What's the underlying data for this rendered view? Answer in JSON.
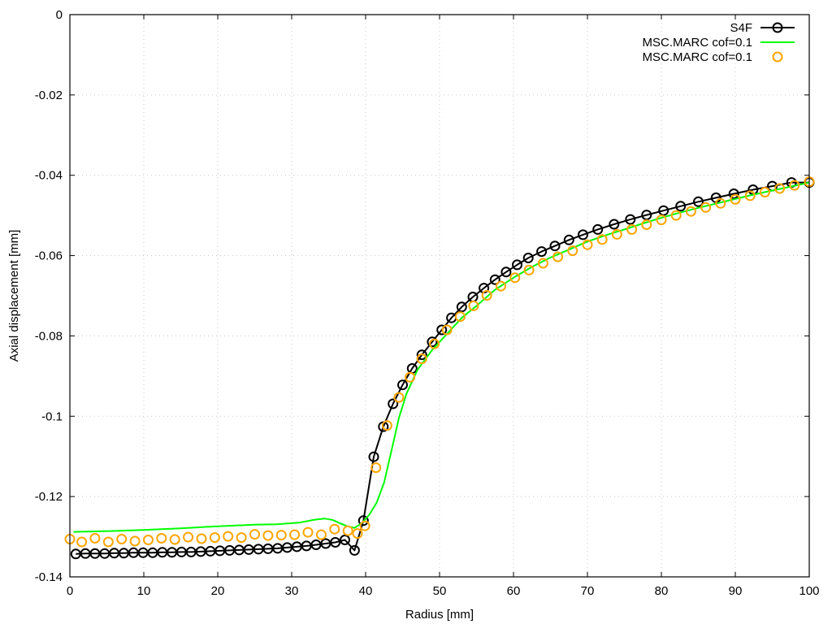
{
  "chart_data": {
    "type": "line",
    "title": "",
    "xlabel": "Radius [mm]",
    "ylabel": "Axial displacement [mm]",
    "xlim": [
      0,
      100
    ],
    "ylim": [
      -0.14,
      0
    ],
    "x_ticks": [
      0,
      10,
      20,
      30,
      40,
      50,
      60,
      70,
      80,
      90,
      100
    ],
    "y_ticks": [
      0,
      -0.02,
      -0.04,
      -0.06,
      -0.08,
      -0.1,
      -0.12,
      -0.14
    ],
    "x_tick_labels": [
      "0",
      "10",
      "20",
      "30",
      "40",
      "50",
      "60",
      "70",
      "80",
      "90",
      "100"
    ],
    "y_tick_labels": [
      "0",
      "-0.02",
      "-0.04",
      "-0.06",
      "-0.08",
      "-0.1",
      "-0.12",
      "-0.14"
    ],
    "grid": true,
    "legend_position": "top-right",
    "series": [
      {
        "name": "S4F",
        "style": "line+circles",
        "color": "#000000",
        "x": [
          0.8,
          2.1,
          3.4,
          4.7,
          6.0,
          7.3,
          8.6,
          9.9,
          11.2,
          12.5,
          13.8,
          15.1,
          16.4,
          17.7,
          19.0,
          20.3,
          21.6,
          22.9,
          24.2,
          25.5,
          26.8,
          28.1,
          29.4,
          30.7,
          32.0,
          33.3,
          34.6,
          35.9,
          37.2,
          38.5,
          39.7,
          41.1,
          42.4,
          43.7,
          45.0,
          46.3,
          47.6,
          49.0,
          50.3,
          51.6,
          53.0,
          54.5,
          56.0,
          57.5,
          59.0,
          60.5,
          62.0,
          63.8,
          65.6,
          67.5,
          69.4,
          71.4,
          73.6,
          75.8,
          78.0,
          80.3,
          82.6,
          85.0,
          87.4,
          89.8,
          92.4,
          95.0,
          97.6,
          100.0
        ],
        "y": [
          -0.1343,
          -0.1342,
          -0.1342,
          -0.1342,
          -0.1341,
          -0.1341,
          -0.134,
          -0.134,
          -0.134,
          -0.1339,
          -0.1339,
          -0.1338,
          -0.1338,
          -0.1337,
          -0.1336,
          -0.1335,
          -0.1334,
          -0.1333,
          -0.1332,
          -0.1331,
          -0.133,
          -0.1329,
          -0.1327,
          -0.1325,
          -0.1323,
          -0.132,
          -0.1317,
          -0.1314,
          -0.1308,
          -0.1334,
          -0.126,
          -0.1101,
          -0.1026,
          -0.0969,
          -0.0922,
          -0.0881,
          -0.0847,
          -0.0815,
          -0.0785,
          -0.0755,
          -0.0728,
          -0.0703,
          -0.0681,
          -0.066,
          -0.0641,
          -0.0623,
          -0.0606,
          -0.059,
          -0.0576,
          -0.0561,
          -0.0548,
          -0.0535,
          -0.0522,
          -0.051,
          -0.0499,
          -0.0488,
          -0.0477,
          -0.0466,
          -0.0456,
          -0.0446,
          -0.0436,
          -0.0427,
          -0.0418,
          -0.0418
        ]
      },
      {
        "name": "MSC.MARC cof=0.1",
        "style": "line",
        "color": "#00ff00",
        "x": [
          0.5,
          5,
          10,
          15,
          20,
          25,
          28,
          31,
          33,
          34.5,
          35.5,
          36.5,
          37.5,
          38.5,
          39.5,
          40.5,
          41.5,
          42.5,
          43.5,
          44.5,
          45.5,
          47,
          49,
          51,
          53,
          55,
          57.5,
          60,
          62.5,
          65,
          67.5,
          70,
          72.5,
          75,
          77.5,
          80,
          82.5,
          85,
          87.5,
          90,
          92.5,
          95,
          97.5,
          100
        ],
        "y": [
          -0.1288,
          -0.1286,
          -0.1283,
          -0.1279,
          -0.1274,
          -0.127,
          -0.1269,
          -0.1265,
          -0.1258,
          -0.1255,
          -0.1258,
          -0.1266,
          -0.1274,
          -0.1278,
          -0.1266,
          -0.1245,
          -0.1215,
          -0.1165,
          -0.1085,
          -0.1005,
          -0.0945,
          -0.0885,
          -0.0835,
          -0.0795,
          -0.0755,
          -0.0725,
          -0.0685,
          -0.0655,
          -0.0628,
          -0.0605,
          -0.0585,
          -0.0565,
          -0.0549,
          -0.0535,
          -0.052,
          -0.0506,
          -0.0493,
          -0.0481,
          -0.047,
          -0.0459,
          -0.0448,
          -0.0438,
          -0.0428,
          -0.0418
        ]
      },
      {
        "name": "MSC.MARC cof=0.1",
        "style": "circles",
        "color": "#ffa500",
        "x": [
          0.0,
          1.6,
          3.4,
          5.2,
          7.0,
          8.8,
          10.6,
          12.4,
          14.2,
          16.0,
          17.8,
          19.6,
          21.4,
          23.2,
          25.0,
          26.8,
          28.6,
          30.4,
          32.2,
          34.0,
          35.8,
          37.6,
          38.9,
          39.9,
          41.4,
          42.9,
          44.5,
          46.0,
          47.6,
          49.3,
          51.0,
          52.8,
          54.6,
          56.4,
          58.3,
          60.2,
          62.1,
          64.0,
          66.0,
          68.0,
          70.0,
          72.0,
          74.0,
          76.0,
          78.0,
          80.0,
          82.0,
          84.0,
          86.0,
          88.0,
          90.0,
          92.0,
          94.0,
          96.0,
          98.0,
          100.0
        ],
        "y": [
          -0.1306,
          -0.1313,
          -0.1304,
          -0.1313,
          -0.1306,
          -0.1311,
          -0.1308,
          -0.1304,
          -0.1307,
          -0.1301,
          -0.1305,
          -0.1302,
          -0.1299,
          -0.1302,
          -0.1294,
          -0.1297,
          -0.1296,
          -0.1295,
          -0.1289,
          -0.1295,
          -0.1281,
          -0.1285,
          -0.1292,
          -0.1273,
          -0.1128,
          -0.1023,
          -0.0953,
          -0.0903,
          -0.0857,
          -0.082,
          -0.0785,
          -0.0752,
          -0.0725,
          -0.0699,
          -0.0676,
          -0.0655,
          -0.0636,
          -0.0619,
          -0.0603,
          -0.0588,
          -0.0573,
          -0.056,
          -0.0547,
          -0.0535,
          -0.0523,
          -0.0511,
          -0.05,
          -0.049,
          -0.048,
          -0.047,
          -0.046,
          -0.0451,
          -0.0442,
          -0.0433,
          -0.0425,
          -0.0416
        ]
      }
    ]
  }
}
